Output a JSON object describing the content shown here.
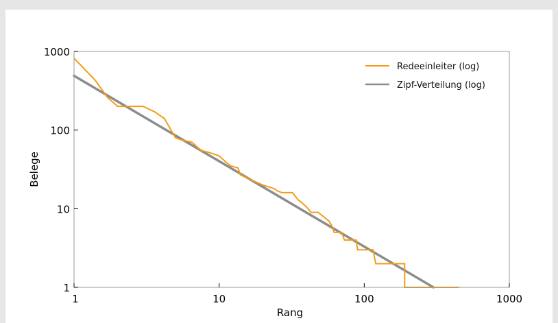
{
  "chart_data": {
    "type": "line",
    "title": "",
    "xlabel": "Rang",
    "ylabel": "Belege",
    "x_scale": "log",
    "y_scale": "log",
    "xlim": [
      1,
      1000
    ],
    "ylim": [
      1,
      1000
    ],
    "x_ticks": [
      "1",
      "10",
      "100",
      "1000"
    ],
    "y_ticks": [
      "1",
      "10",
      "100",
      "1000"
    ],
    "grid": false,
    "legend": "top-right",
    "series": [
      {
        "name": "Redeeinleiter (log)",
        "color": "#f39c12",
        "style": "step",
        "points": [
          [
            1,
            820
          ],
          [
            1.4,
            430
          ],
          [
            1.7,
            260
          ],
          [
            2.0,
            200
          ],
          [
            2.4,
            200
          ],
          [
            3.0,
            200
          ],
          [
            3.6,
            170
          ],
          [
            4.2,
            140
          ],
          [
            5.0,
            80
          ],
          [
            5.5,
            75
          ],
          [
            6.5,
            70
          ],
          [
            7.5,
            55
          ],
          [
            8.5,
            52
          ],
          [
            10,
            47
          ],
          [
            11,
            40
          ],
          [
            12,
            35
          ],
          [
            13.5,
            33
          ],
          [
            14,
            27
          ],
          [
            16,
            24
          ],
          [
            20,
            20
          ],
          [
            24,
            18
          ],
          [
            25,
            17
          ],
          [
            27,
            16
          ],
          [
            29,
            16
          ],
          [
            32,
            16
          ],
          [
            35,
            13
          ],
          [
            37,
            12
          ],
          [
            39,
            11
          ],
          [
            41,
            10
          ],
          [
            43,
            9
          ],
          [
            48,
            9
          ],
          [
            52,
            8
          ],
          [
            57,
            7
          ],
          [
            60,
            6
          ],
          [
            62,
            5
          ],
          [
            70,
            5
          ],
          [
            73,
            4
          ],
          [
            88,
            4
          ],
          [
            90,
            3
          ],
          [
            105,
            3
          ],
          [
            115,
            3
          ],
          [
            120,
            2
          ],
          [
            145,
            2
          ],
          [
            190,
            2
          ],
          [
            190,
            1
          ],
          [
            450,
            1
          ]
        ]
      },
      {
        "name": "Zipf-Verteilung (log)",
        "color": "#8c8c8c",
        "style": "power",
        "points": [
          [
            1,
            490
          ],
          [
            300,
            1
          ]
        ]
      }
    ]
  }
}
